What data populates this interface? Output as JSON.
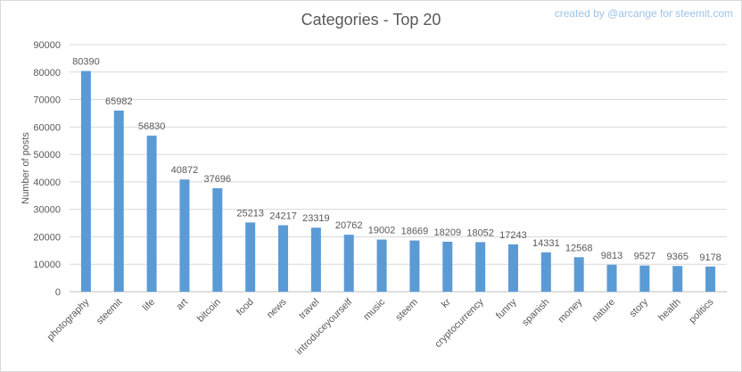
{
  "credit": "created by @arcange for steemit.com",
  "chart_data": {
    "type": "bar",
    "title": "Categories - Top 20",
    "xlabel": "",
    "ylabel": "Number of posts",
    "ylim": [
      0,
      90000
    ],
    "yticks": [
      0,
      10000,
      20000,
      30000,
      40000,
      50000,
      60000,
      70000,
      80000,
      90000
    ],
    "grid": true,
    "color": "#5b9bd5",
    "categories": [
      "photography",
      "steemit",
      "life",
      "art",
      "bitcoin",
      "food",
      "news",
      "travel",
      "introduceyourself",
      "music",
      "steem",
      "kr",
      "cryptocurrency",
      "funny",
      "spanish",
      "money",
      "nature",
      "story",
      "health",
      "politics"
    ],
    "values": [
      80390,
      65982,
      56830,
      40872,
      37696,
      25213,
      24217,
      23319,
      20762,
      19002,
      18669,
      18209,
      18052,
      17243,
      14331,
      12568,
      9813,
      9527,
      9365,
      9178
    ]
  }
}
